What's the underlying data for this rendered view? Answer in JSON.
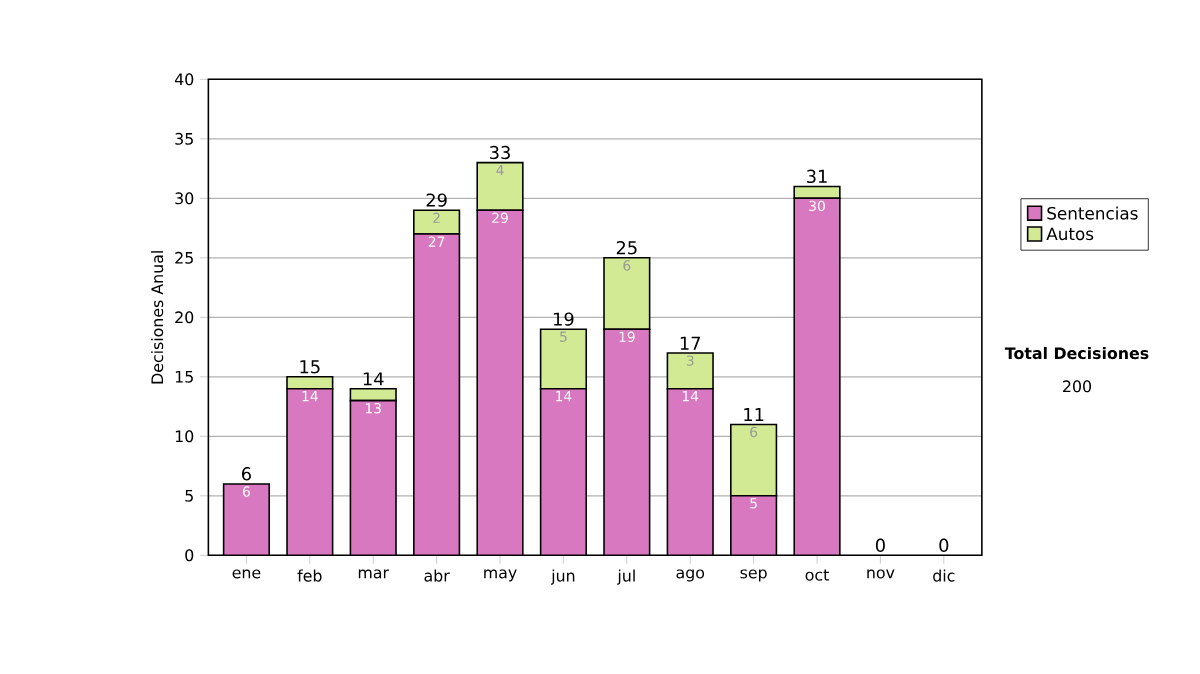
{
  "chart_data": {
    "type": "bar",
    "stacked": true,
    "ylabel": "Decisiones Anual",
    "categories": [
      "ene",
      "feb",
      "mar",
      "abr",
      "may",
      "jun",
      "jul",
      "ago",
      "sep",
      "oct",
      "nov",
      "dic"
    ],
    "series": [
      {
        "name": "Sentencias",
        "color": "#d878c0",
        "values": [
          6,
          14,
          13,
          27,
          29,
          14,
          19,
          14,
          5,
          30,
          0,
          0
        ],
        "value_labels": [
          "6",
          "14",
          "13",
          "27",
          "29",
          "14",
          "19",
          "14",
          "5",
          "30",
          null,
          null
        ]
      },
      {
        "name": "Autos",
        "color": "#d2ea94",
        "values": [
          0,
          1,
          1,
          2,
          4,
          5,
          6,
          3,
          6,
          1,
          0,
          0
        ],
        "value_labels": [
          null,
          null,
          null,
          "2",
          "4",
          "5",
          "6",
          "3",
          "6",
          null,
          null,
          null
        ]
      }
    ],
    "totals": [
      "6",
      "15",
      "14",
      "29",
      "33",
      "19",
      "25",
      "17",
      "11",
      "31",
      "0",
      "0"
    ],
    "ylim": [
      0,
      40
    ],
    "yticks": [
      0,
      5,
      10,
      15,
      20,
      25,
      30,
      35,
      40
    ],
    "grid": "y",
    "legend": "right",
    "annotations": [
      "Total Decisiones",
      "200"
    ]
  }
}
